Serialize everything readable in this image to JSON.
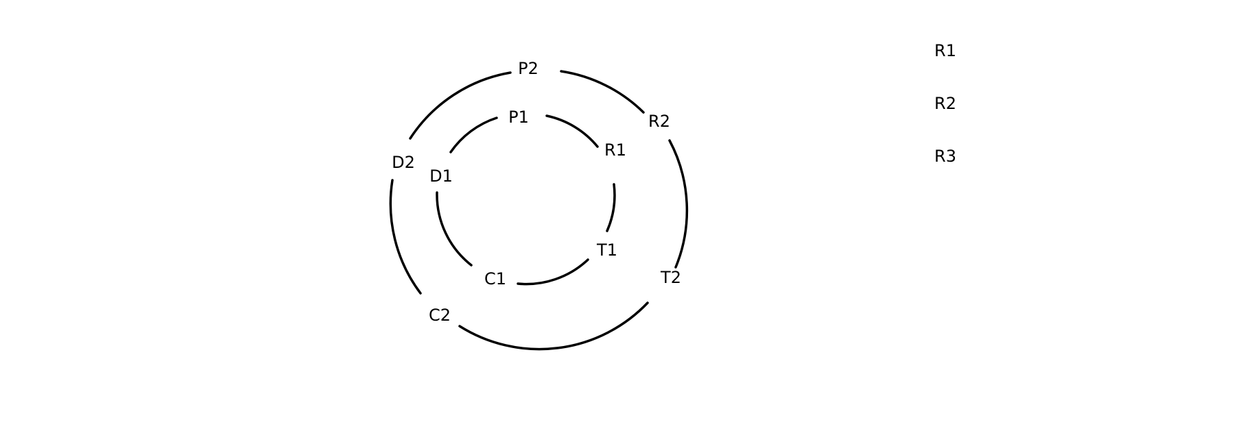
{
  "diagram": {
    "inner_ring": [
      "P1",
      "R1",
      "T1",
      "C1",
      "D1"
    ],
    "outer_ring": [
      "P2",
      "R2",
      "T2",
      "C2",
      "D2"
    ],
    "side_list": [
      "R1",
      "R2",
      "R3"
    ]
  },
  "colors": {
    "background": "#ffffff",
    "ink": "#000000"
  }
}
